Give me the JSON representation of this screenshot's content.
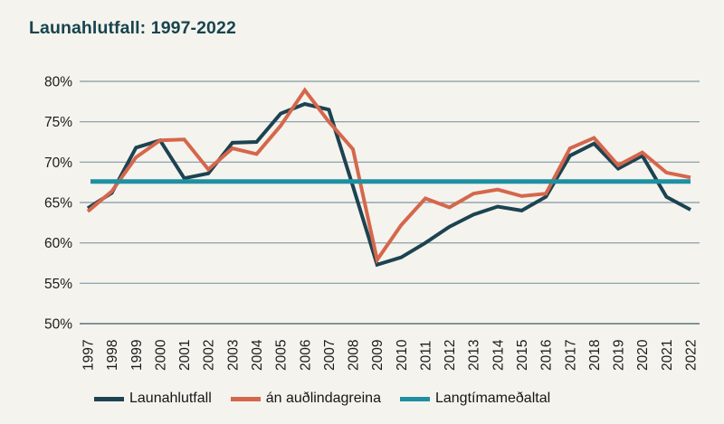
{
  "title": "Launahlutfall: 1997-2022",
  "colors": {
    "background": "#f5f3ed",
    "title_text": "#17444f",
    "gridline": "#8099a3",
    "axis_line": "#7d949c",
    "tick_text": "#1c1c1c",
    "series_launahlutfall": "#1c4351",
    "series_an_audlindagreina": "#d5674c",
    "series_langtimamedaltal": "#1e90a2"
  },
  "chart_data": {
    "type": "line",
    "title": "Launahlutfall: 1997-2022",
    "x": [
      1997,
      1998,
      1999,
      2000,
      2001,
      2002,
      2003,
      2004,
      2005,
      2006,
      2007,
      2008,
      2009,
      2010,
      2011,
      2012,
      2013,
      2014,
      2015,
      2016,
      2017,
      2018,
      2019,
      2020,
      2021,
      2022
    ],
    "series": [
      {
        "name": "Launahlutfall",
        "color": "#1c4351",
        "stroke_width": 4,
        "values": [
          64.3,
          66.2,
          71.8,
          72.7,
          68.0,
          68.6,
          72.4,
          72.5,
          76.0,
          77.2,
          76.5,
          67.0,
          57.3,
          58.2,
          60.0,
          62.0,
          63.5,
          64.5,
          64.0,
          65.7,
          70.8,
          72.3,
          69.2,
          70.8,
          65.7,
          64.1
        ]
      },
      {
        "name": "án auðlindagreina",
        "color": "#d5674c",
        "stroke_width": 4,
        "values": [
          63.9,
          66.4,
          70.6,
          72.7,
          72.8,
          69.1,
          71.7,
          71.0,
          74.5,
          78.9,
          75.0,
          71.6,
          57.9,
          62.2,
          65.5,
          64.4,
          66.1,
          66.6,
          65.8,
          66.1,
          71.7,
          73.0,
          69.6,
          71.2,
          68.7,
          68.1
        ]
      },
      {
        "name": "Langtímameðaltal",
        "color": "#1e90a2",
        "stroke_width": 5,
        "constant": true,
        "value": 67.6
      }
    ],
    "xlabel": "",
    "ylabel": "",
    "ylim": [
      50,
      80
    ],
    "yticks": [
      50,
      55,
      60,
      65,
      70,
      75,
      80
    ],
    "ytick_suffix": "%",
    "grid": true,
    "x_tick_rotation": -90,
    "legend_position": "bottom"
  }
}
